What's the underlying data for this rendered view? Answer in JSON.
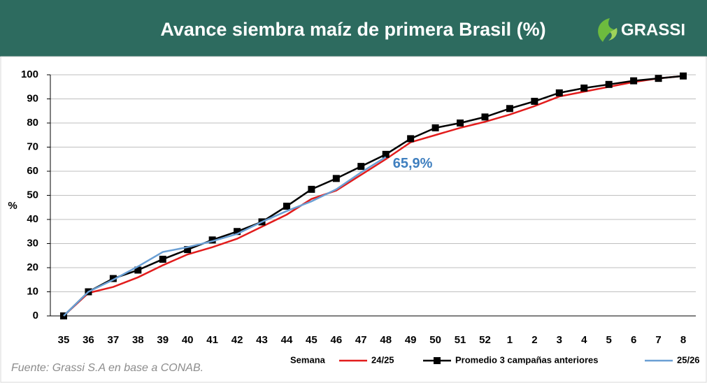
{
  "chart_data": {
    "type": "line",
    "title": "Avance siembra maíz de primera Brasil (%)",
    "logo": "GRASSI",
    "y_label": "%",
    "x_label": "Semana",
    "source": "Fuente: Grassi S.A en base a CONAB.",
    "annotation": "65,9%",
    "categories": [
      "35",
      "36",
      "37",
      "38",
      "39",
      "40",
      "41",
      "42",
      "43",
      "44",
      "45",
      "46",
      "47",
      "48",
      "49",
      "50",
      "51",
      "52",
      "1",
      "2",
      "3",
      "4",
      "5",
      "6",
      "7",
      "8"
    ],
    "series": [
      {
        "name": "24/25",
        "color": "#e21c1c",
        "marker": false,
        "values": [
          0,
          9.5,
          12,
          16,
          21,
          25.5,
          28.5,
          32,
          37,
          42,
          48.5,
          52,
          58.5,
          65,
          72,
          75,
          78,
          80.5,
          83.5,
          87,
          91,
          93,
          95,
          97,
          98.5,
          99.5
        ]
      },
      {
        "name": "Promedio 3 campañas anteriores",
        "color": "#000000",
        "marker": true,
        "values": [
          0,
          10,
          15.5,
          19,
          23.5,
          27.5,
          31.5,
          35,
          39,
          45.5,
          52.5,
          57,
          62,
          67,
          73.5,
          78,
          80,
          82.5,
          86,
          89,
          92.5,
          94.5,
          96,
          97.5,
          98.5,
          99.5
        ]
      },
      {
        "name": "25/26",
        "color": "#6a9fd4",
        "marker": false,
        "values": [
          0,
          10,
          15,
          20.5,
          26.5,
          28.5,
          31,
          34,
          39,
          43.5,
          47.5,
          52.5,
          59.5,
          65.9,
          null,
          null,
          null,
          null,
          null,
          null,
          null,
          null,
          null,
          null,
          null,
          null
        ]
      }
    ],
    "ylim": [
      0,
      100
    ],
    "yticks": [
      0,
      10,
      20,
      30,
      40,
      50,
      60,
      70,
      80,
      90,
      100
    ],
    "grid": true
  }
}
